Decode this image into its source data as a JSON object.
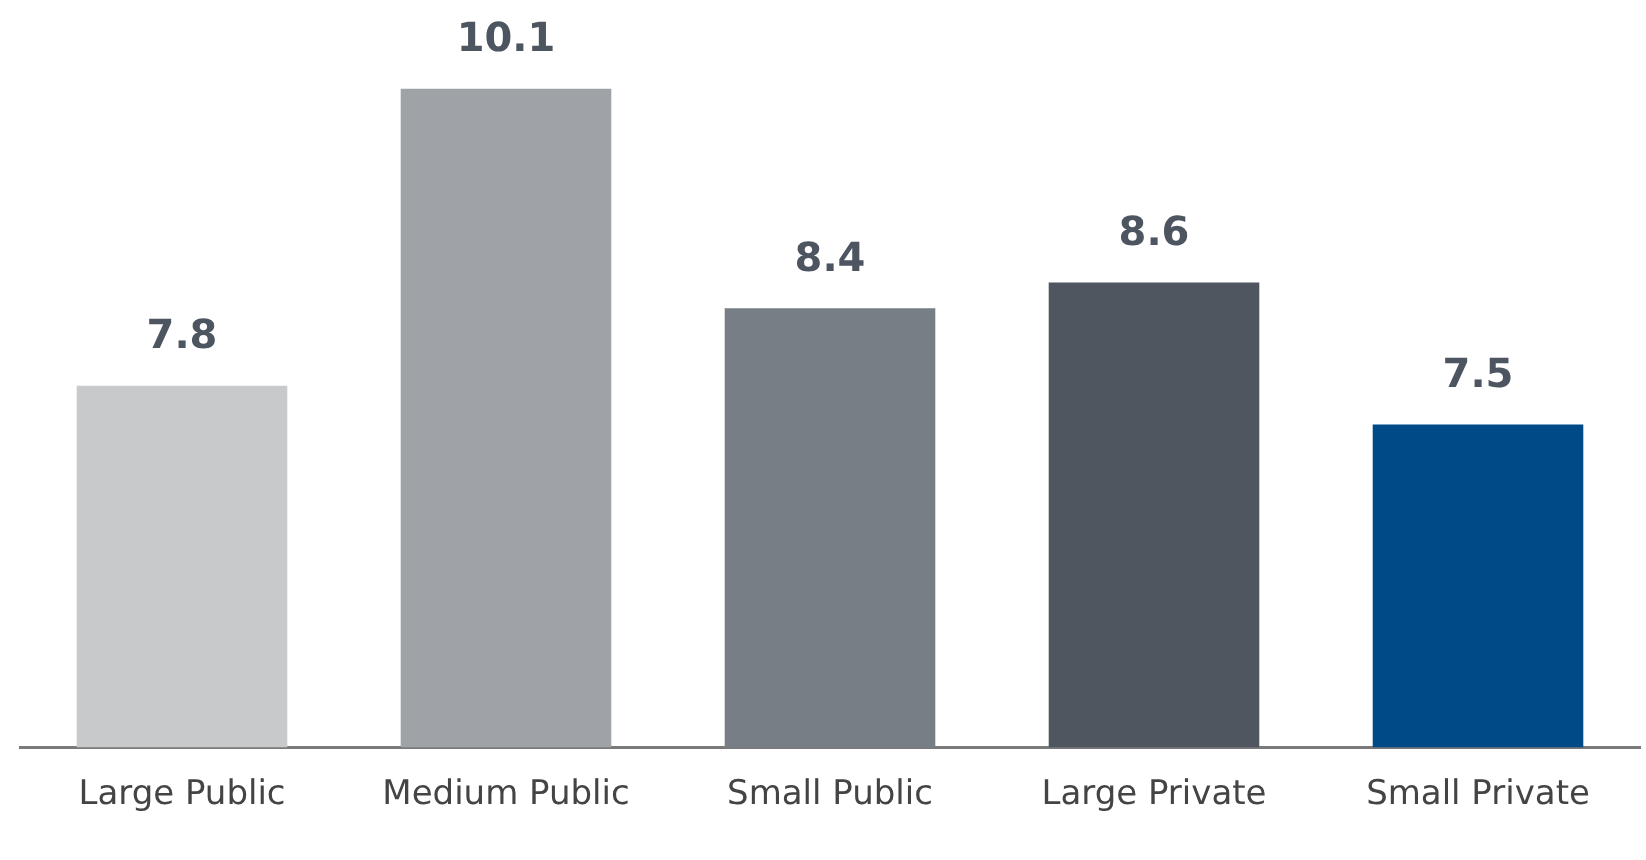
{
  "chart_data": {
    "type": "bar",
    "categories": [
      "Large Public",
      "Medium Public",
      "Small Public",
      "Large Private",
      "Small Private"
    ],
    "values": [
      7.8,
      10.1,
      8.4,
      8.6,
      7.5
    ],
    "colors": [
      "#c8c9cb",
      "#9fa2a7",
      "#787e86",
      "#50565f",
      "#004a87"
    ],
    "tick_labels": "x",
    "data_labels": true,
    "grid": false,
    "legend": false
  }
}
